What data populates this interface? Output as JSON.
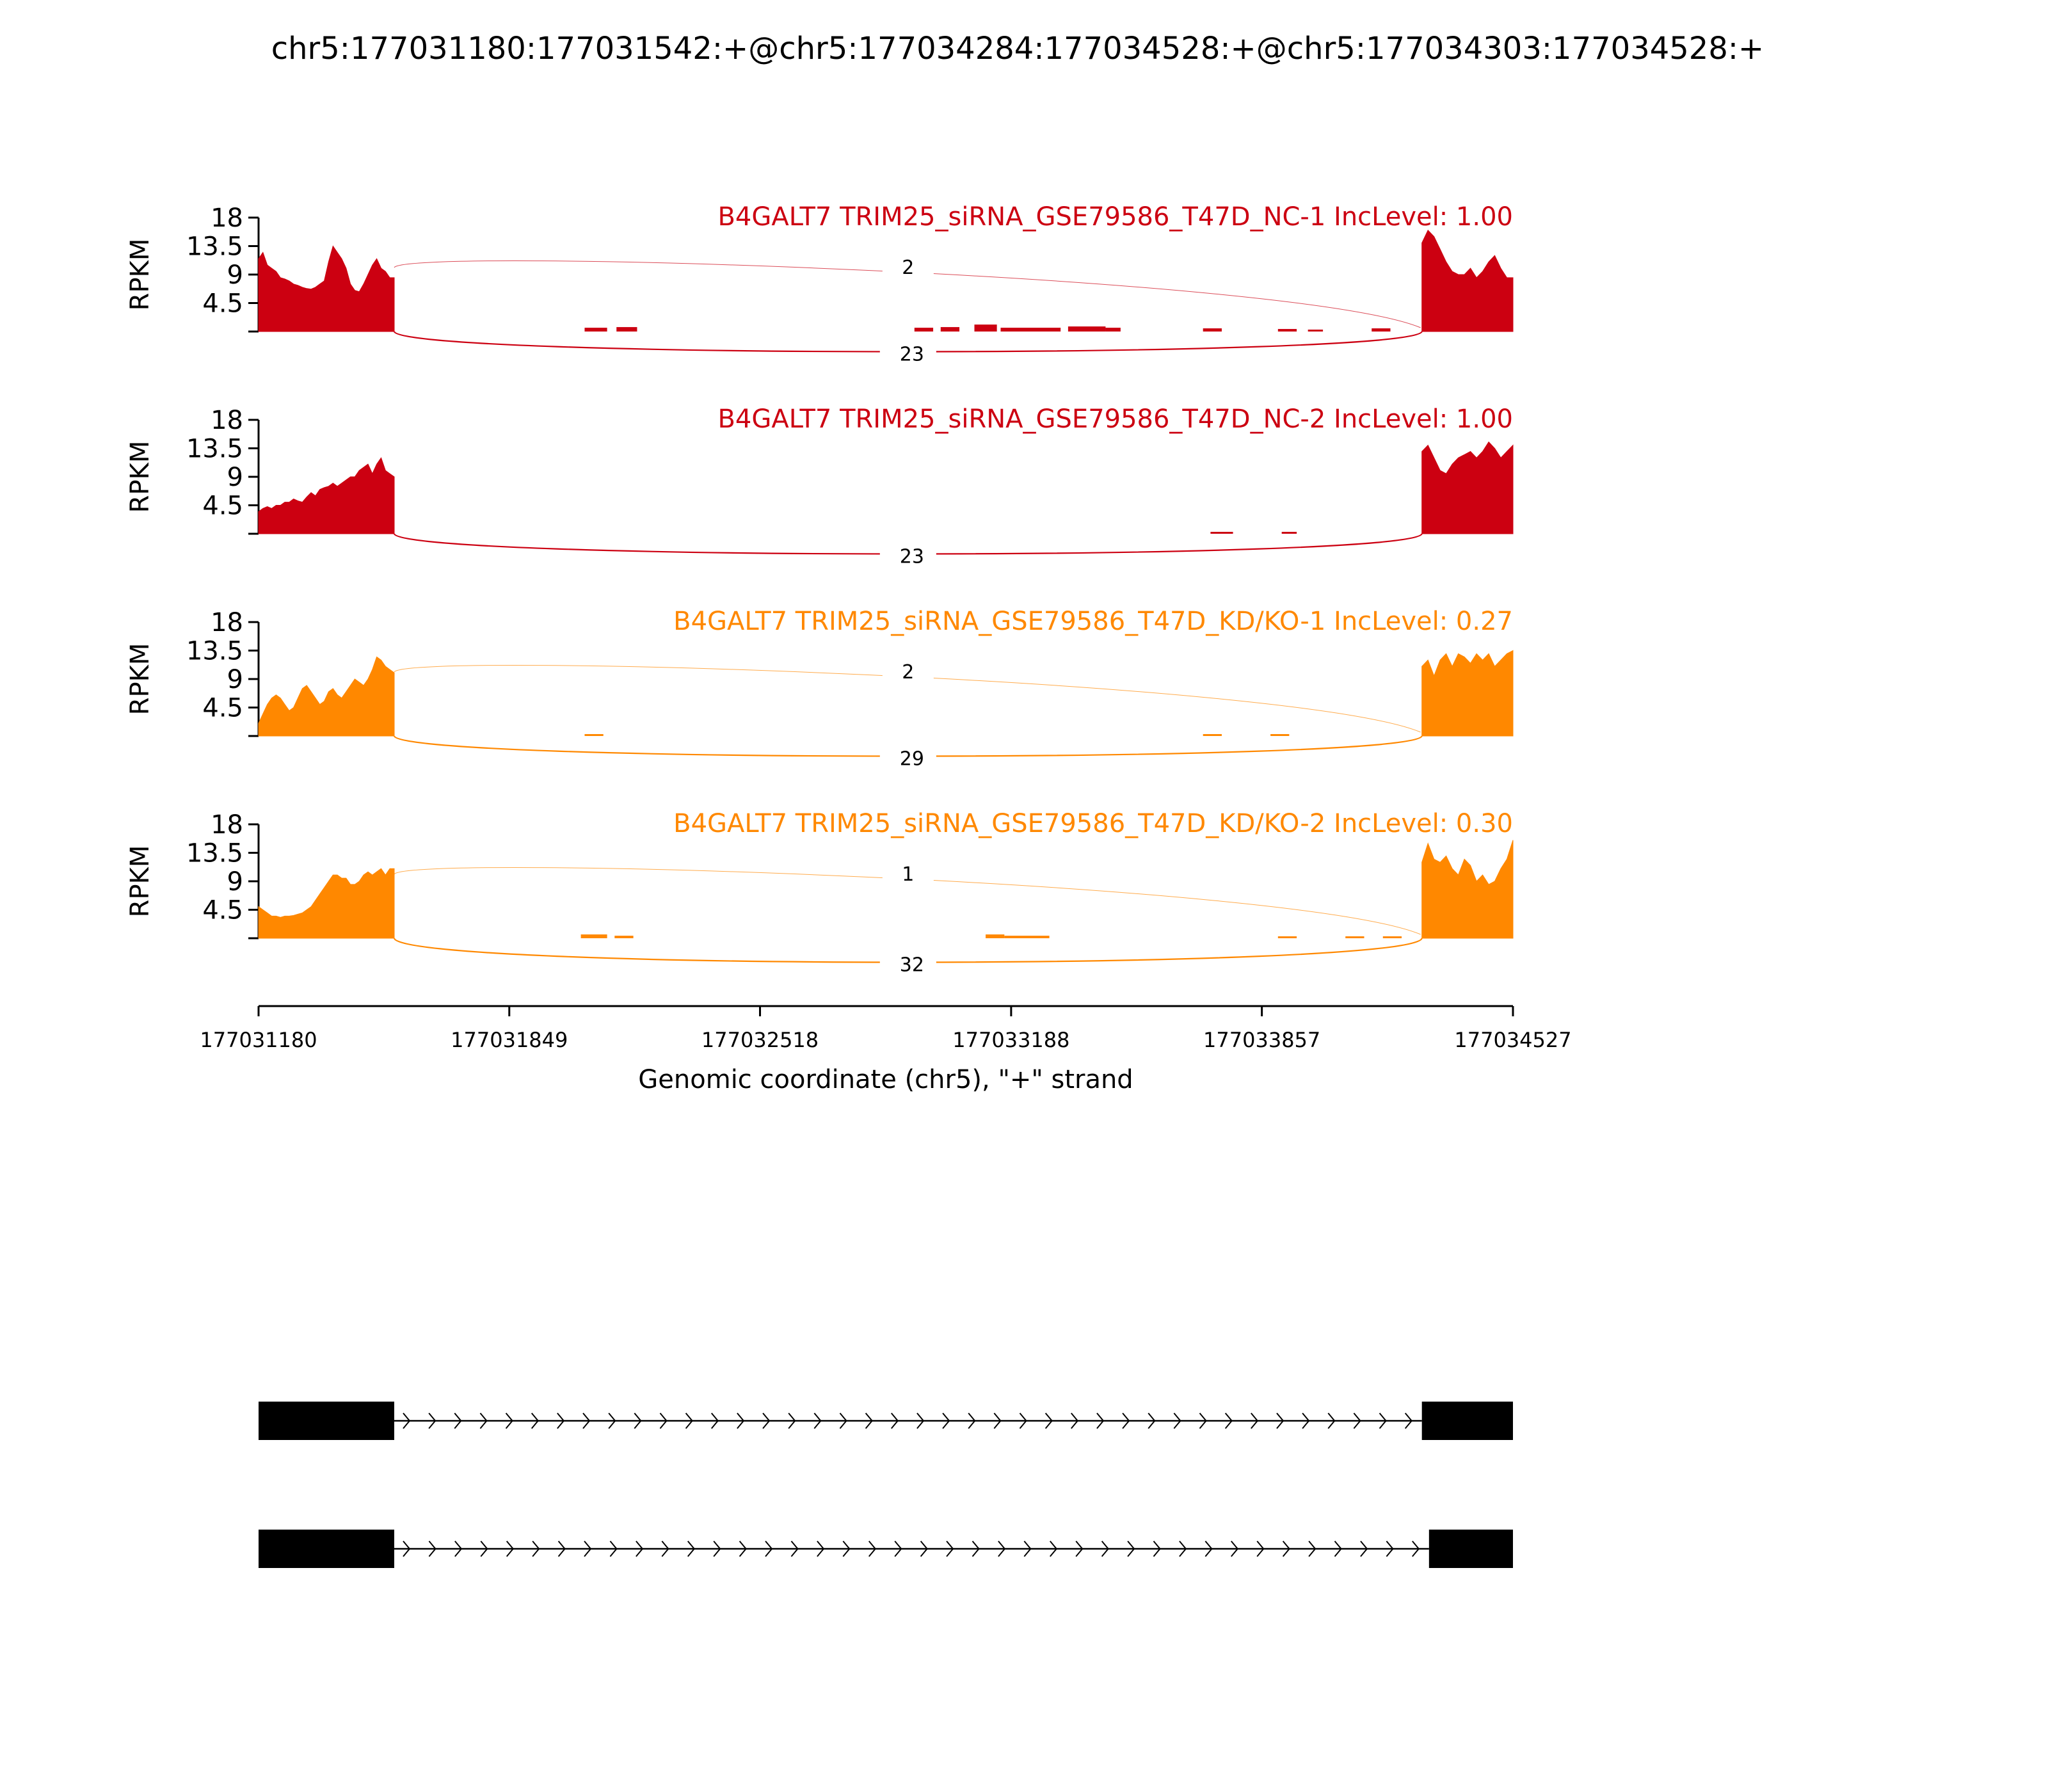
{
  "title": "chr5:177031180:177031542:+@chr5:177034284:177034528:+@chr5:177034303:177034528:+",
  "colors": {
    "nc": "#cc0011",
    "kd": "#ff8800",
    "axis": "#000000",
    "exon": "#000000"
  },
  "chart_data": {
    "type": "area",
    "title": "chr5:177031180:177031542:+@chr5:177034284:177034528:+@chr5:177034303:177034528:+",
    "xlabel": "Genomic coordinate (chr5), \"+\" strand",
    "ylabel": "RPKM",
    "xlim": [
      177031180,
      177034527
    ],
    "x_ticks": [
      "177031180",
      "177031849",
      "177032518",
      "177033188",
      "177033857",
      "177034527"
    ],
    "ylim": [
      0,
      18
    ],
    "y_ticks": [
      "4.5",
      "9",
      "13.5",
      "18"
    ],
    "grid": false,
    "exon1": [
      177031180,
      177031542
    ],
    "exon2": [
      177034284,
      177034527
    ],
    "exon2_alt": [
      177034303,
      177034527
    ],
    "panels": [
      {
        "label": "B4GALT7 TRIM25_siRNA_GSE79586_T47D_NC-1 IncLevel: 1.00",
        "group": "nc",
        "inclusion_junction_reads": "2",
        "skipping_junction_reads": "23",
        "exon1_profile": [
          11.5,
          12.5,
          10.5,
          10,
          9.5,
          8.5,
          8.3,
          8,
          7.5,
          7.3,
          7,
          6.8,
          6.7,
          7,
          7.5,
          8,
          11,
          13.5,
          12.5,
          11.5,
          10,
          7.5,
          6.5,
          6.3,
          7.5,
          9,
          10.5,
          11.5,
          10,
          9.5,
          8.5,
          8.5
        ],
        "exon2_profile": [
          14,
          16,
          15,
          13,
          11,
          9.5,
          9,
          9,
          10,
          8.5,
          9.5,
          11,
          12,
          10,
          8.5,
          8.5
        ],
        "intron_blips": [
          [
            177032050,
            177032110,
            0.6
          ],
          [
            177032135,
            177032190,
            0.7
          ],
          [
            177032930,
            177032980,
            0.6
          ],
          [
            177033000,
            177033050,
            0.7
          ],
          [
            177033090,
            177033150,
            1.1
          ],
          [
            177033160,
            177033320,
            0.6
          ],
          [
            177033340,
            177033440,
            0.8
          ],
          [
            177033440,
            177033480,
            0.6
          ],
          [
            177033700,
            177033750,
            0.5
          ],
          [
            177033900,
            177033950,
            0.4
          ],
          [
            177033980,
            177034020,
            0.3
          ],
          [
            177034150,
            177034200,
            0.5
          ]
        ]
      },
      {
        "label": "B4GALT7 TRIM25_siRNA_GSE79586_T47D_NC-2 IncLevel: 1.00",
        "group": "nc",
        "inclusion_junction_reads": "",
        "skipping_junction_reads": "23",
        "exon1_profile": [
          3.5,
          4,
          4.3,
          4,
          4.5,
          4.5,
          5,
          5,
          5.5,
          5.2,
          5,
          5.8,
          6.5,
          6,
          7,
          7.3,
          7.5,
          8,
          7.5,
          8,
          8.5,
          9,
          9,
          10,
          10.5,
          11,
          9.5,
          11,
          12,
          10,
          9.5,
          9
        ],
        "exon2_profile": [
          13,
          14,
          12,
          10,
          9.5,
          11,
          12,
          12.5,
          13,
          12,
          13,
          14.5,
          13.5,
          12,
          13,
          14
        ],
        "intron_blips": [
          [
            177033720,
            177033780,
            0.3
          ],
          [
            177033910,
            177033950,
            0.3
          ]
        ]
      },
      {
        "label": "B4GALT7 TRIM25_siRNA_GSE79586_T47D_KD/KO-1 IncLevel: 0.27",
        "group": "kd",
        "inclusion_junction_reads": "2",
        "skipping_junction_reads": "29",
        "exon1_profile": [
          2,
          3.5,
          5,
          6,
          6.5,
          6,
          5,
          4,
          4.5,
          6,
          7.5,
          8,
          7,
          6,
          5,
          5.5,
          7,
          7.5,
          6.5,
          6,
          7,
          8,
          9,
          8.5,
          8,
          9,
          10.5,
          12.5,
          12,
          11,
          10.5,
          10
        ],
        "exon2_profile": [
          11,
          12,
          9.5,
          12,
          13,
          11,
          13,
          12.5,
          11.5,
          13,
          12,
          13,
          11,
          12,
          13,
          13.5
        ],
        "intron_blips": [
          [
            177032050,
            177032100,
            0.3
          ],
          [
            177033700,
            177033750,
            0.3
          ],
          [
            177033880,
            177033930,
            0.3
          ]
        ]
      },
      {
        "label": "B4GALT7 TRIM25_siRNA_GSE79586_T47D_KD/KO-2 IncLevel: 0.30",
        "group": "kd",
        "inclusion_junction_reads": "1",
        "skipping_junction_reads": "32",
        "exon1_profile": [
          5,
          4.5,
          4,
          3.5,
          3.5,
          3.3,
          3.5,
          3.5,
          3.6,
          3.8,
          4,
          4.5,
          5,
          6,
          7,
          8,
          9,
          10,
          10,
          9.5,
          9.5,
          8.5,
          8.5,
          9,
          10,
          10.5,
          10,
          10.5,
          11,
          10,
          11,
          11
        ],
        "exon2_profile": [
          12,
          15,
          12.5,
          12,
          13,
          11,
          10,
          12.5,
          11.5,
          9,
          10,
          8.5,
          9,
          11,
          12.5,
          15.5
        ],
        "intron_blips": [
          [
            177032040,
            177032110,
            0.6
          ],
          [
            177032130,
            177032180,
            0.4
          ],
          [
            177033120,
            177033170,
            0.6
          ],
          [
            177033170,
            177033290,
            0.4
          ],
          [
            177033900,
            177033950,
            0.3
          ],
          [
            177034080,
            177034130,
            0.3
          ],
          [
            177034180,
            177034230,
            0.3
          ]
        ]
      }
    ]
  }
}
